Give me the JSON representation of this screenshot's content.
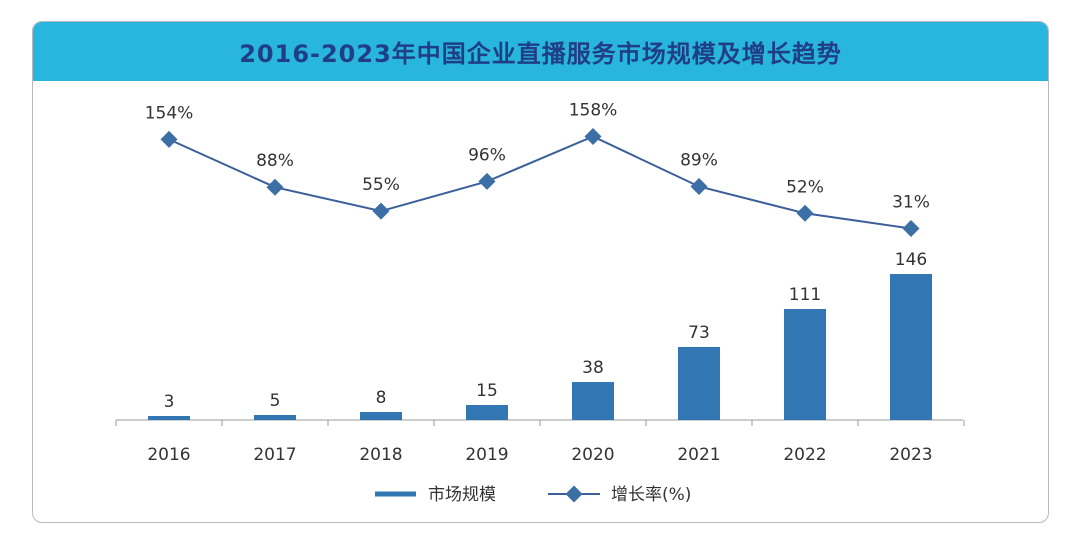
{
  "chart_data": {
    "type": "bar+line",
    "title": "2016-2023年中国企业直播服务市场规模及增长趋势",
    "categories": [
      "2016",
      "2017",
      "2018",
      "2019",
      "2020",
      "2021",
      "2022",
      "2023"
    ],
    "series": [
      {
        "name": "市场规模",
        "type": "bar",
        "values": [
          3,
          5,
          8,
          15,
          38,
          73,
          111,
          146
        ],
        "labels": [
          "3",
          "5",
          "8",
          "15",
          "38",
          "73",
          "111",
          "146"
        ]
      },
      {
        "name": "增长率(%)",
        "type": "line",
        "values": [
          154,
          88,
          55,
          96,
          158,
          89,
          52,
          31
        ],
        "labels": [
          "154%",
          "88%",
          "55%",
          "96%",
          "158%",
          "89%",
          "52%",
          "31%"
        ]
      }
    ],
    "colors": {
      "bar": "#3277b3",
      "line": "#3a5f9a",
      "marker": "#3c6fa5",
      "header": "#29b6de",
      "title": "#1f3e86"
    }
  }
}
